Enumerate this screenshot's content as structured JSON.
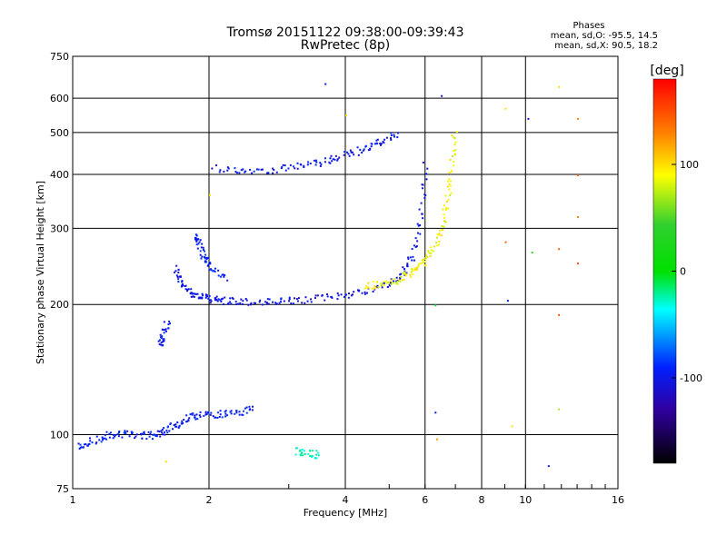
{
  "chart_data": {
    "type": "scatter",
    "title": "Tromsø 20151122 09:38:00-09:39:43",
    "subtitle": "RwPretec (8p)",
    "xlabel": "Frequency [MHz]",
    "ylabel": "Stationary phase Virtual Height [km]",
    "x_scale": "log",
    "y_scale": "log",
    "xlim": [
      1,
      16
    ],
    "ylim": [
      75,
      750
    ],
    "x_ticks": [
      "1",
      "2",
      "4",
      "6",
      "8",
      "10",
      "16"
    ],
    "y_ticks": [
      "75",
      "100",
      "200",
      "300",
      "400",
      "500",
      "600",
      "750"
    ],
    "grid": true,
    "phase_info": {
      "title": "Phases",
      "line_o": "mean, sd,O: -95.5, 14.5",
      "line_x": "mean, sd,X: 90.5, 18.2"
    },
    "colorbar": {
      "label": "[deg]",
      "range": [
        -180,
        180
      ],
      "ticks": [
        "100",
        "0",
        "-100"
      ],
      "tick_values": [
        100,
        0,
        -100
      ]
    },
    "traces": [
      {
        "x": [
          1.68,
          1.72,
          1.8,
          1.9,
          2.0,
          2.1,
          2.3,
          2.6,
          2.9,
          3.3,
          3.8,
          4.3,
          4.9,
          5.3,
          5.6,
          5.85,
          6.0
        ],
        "y": [
          245,
          225,
          215,
          210,
          207,
          205,
          204,
          203,
          204,
          206,
          210,
          215,
          222,
          235,
          260,
          320,
          430
        ],
        "phase": -105
      },
      {
        "x": [
          4.4,
          4.8,
          5.2,
          5.6,
          5.9,
          6.2,
          6.5,
          6.7,
          6.85,
          6.95
        ],
        "y": [
          220,
          224,
          228,
          238,
          250,
          268,
          300,
          350,
          420,
          510
        ],
        "phase": 90
      },
      {
        "x": [
          2.05,
          2.4,
          2.8,
          3.2,
          3.6,
          4.0,
          4.4,
          4.8,
          5.2
        ],
        "y": [
          415,
          410,
          412,
          420,
          430,
          445,
          460,
          480,
          500
        ],
        "phase": -100
      },
      {
        "x": [
          1.02,
          1.1,
          1.2,
          1.3,
          1.4,
          1.5,
          1.6,
          1.7,
          1.8,
          1.95,
          2.1,
          2.3,
          2.5
        ],
        "y": [
          94,
          97,
          100,
          101,
          100,
          100,
          103,
          106,
          110,
          112,
          112,
          113,
          115
        ],
        "phase": -95
      },
      {
        "x": [
          1.55,
          1.58,
          1.62
        ],
        "y": [
          162,
          170,
          185
        ],
        "phase": -100
      },
      {
        "x": [
          1.85,
          1.9,
          1.95,
          2.0,
          2.2
        ],
        "y": [
          290,
          275,
          258,
          245,
          230
        ],
        "phase": -95
      },
      {
        "x": [
          3.1,
          3.3,
          3.5
        ],
        "y": [
          92,
          91,
          90
        ],
        "phase": -30
      }
    ],
    "scattered_points": [
      {
        "x": 3.6,
        "y": 650,
        "phase": -100
      },
      {
        "x": 6.5,
        "y": 610,
        "phase": -100
      },
      {
        "x": 9.0,
        "y": 570,
        "phase": 100
      },
      {
        "x": 11.8,
        "y": 640,
        "phase": 100
      },
      {
        "x": 13.0,
        "y": 540,
        "phase": 130
      },
      {
        "x": 13.0,
        "y": 400,
        "phase": 140
      },
      {
        "x": 13.0,
        "y": 320,
        "phase": 130
      },
      {
        "x": 13.0,
        "y": 250,
        "phase": 150
      },
      {
        "x": 11.8,
        "y": 270,
        "phase": 140
      },
      {
        "x": 11.8,
        "y": 190,
        "phase": 150
      },
      {
        "x": 11.8,
        "y": 115,
        "phase": 70
      },
      {
        "x": 9.0,
        "y": 280,
        "phase": 140
      },
      {
        "x": 9.1,
        "y": 205,
        "phase": -100
      },
      {
        "x": 9.3,
        "y": 105,
        "phase": 100
      },
      {
        "x": 10.1,
        "y": 540,
        "phase": -100
      },
      {
        "x": 10.3,
        "y": 265,
        "phase": 40
      },
      {
        "x": 11.2,
        "y": 85,
        "phase": -100
      },
      {
        "x": 6.3,
        "y": 200,
        "phase": -10
      },
      {
        "x": 6.3,
        "y": 113,
        "phase": -100
      },
      {
        "x": 6.35,
        "y": 98,
        "phase": 120
      },
      {
        "x": 1.6,
        "y": 87,
        "phase": 100
      },
      {
        "x": 2.0,
        "y": 360,
        "phase": 100
      },
      {
        "x": 4.0,
        "y": 550,
        "phase": 100
      }
    ]
  }
}
